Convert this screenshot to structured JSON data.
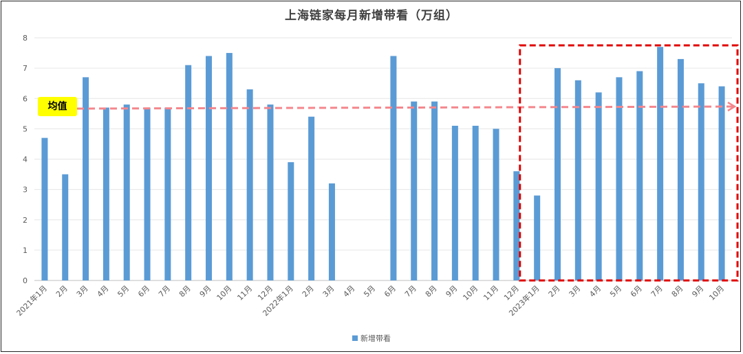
{
  "chart_data": {
    "type": "bar",
    "title": "上海链家每月新增带看（万组）",
    "categories": [
      "2021年1月",
      "2月",
      "3月",
      "4月",
      "5月",
      "6月",
      "7月",
      "8月",
      "9月",
      "10月",
      "11月",
      "12月",
      "2022年1月",
      "2月",
      "3月",
      "4月",
      "5月",
      "6月",
      "7月",
      "8月",
      "9月",
      "10月",
      "11月",
      "12月",
      "2023年1月",
      "2月",
      "3月",
      "4月",
      "5月",
      "6月",
      "7月",
      "8月",
      "9月",
      "10月"
    ],
    "series": [
      {
        "name": "新增带看",
        "color": "#5b9bd5",
        "values": [
          4.7,
          3.5,
          6.7,
          5.7,
          5.8,
          5.7,
          5.7,
          7.1,
          7.4,
          7.5,
          6.3,
          5.8,
          3.9,
          5.4,
          3.2,
          null,
          null,
          7.4,
          5.9,
          5.9,
          5.1,
          5.1,
          5.0,
          3.6,
          2.8,
          7.0,
          6.6,
          6.2,
          6.7,
          6.9,
          7.7,
          7.3,
          6.5,
          6.4
        ]
      }
    ],
    "ylim": [
      0,
      8
    ],
    "yticks": [
      0,
      1,
      2,
      3,
      4,
      5,
      6,
      7,
      8
    ],
    "grid": true,
    "legend_position": "bottom",
    "annotations": {
      "average_label": "均值",
      "average_value": 5.7,
      "average_line_color": "#f4868c",
      "highlight_box_color": "#e00000",
      "highlight_from_category": 24,
      "highlight_to_category": 33
    }
  }
}
